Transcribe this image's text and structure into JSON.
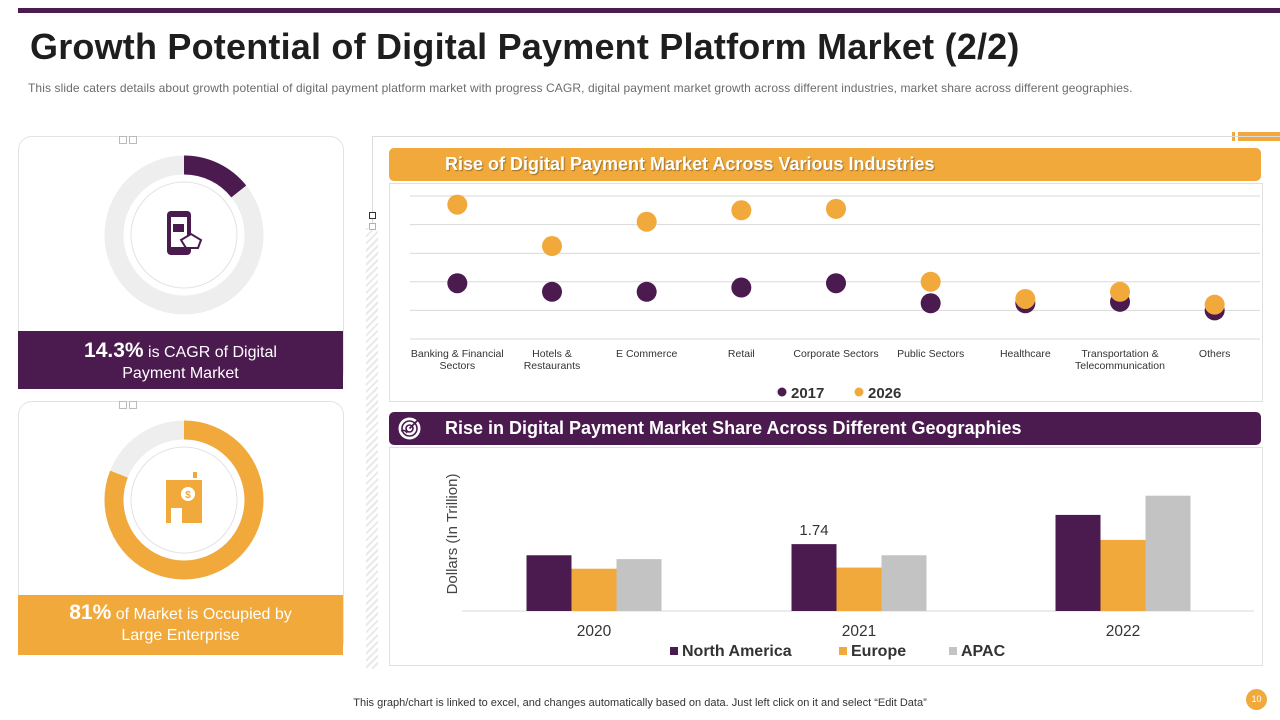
{
  "slide": {
    "title": "Growth Potential of Digital Payment Platform Market (2/2)",
    "subtitle": "This slide caters details about growth  potential of digital payment platform  market with progress  CAGR, digital payment market growth  across different  industries,  market share  across different  geographies.",
    "footer": "This graph/chart is linked to excel,  and changes automatically based on data. Just left click on it and select “Edit Data”",
    "page_number": "10"
  },
  "colors": {
    "purple": "#4b1a4f",
    "orange": "#f0a93a",
    "gray": "#c3c3c3"
  },
  "stats": [
    {
      "value": "14.3%",
      "text_line1": " is CAGR of Digital",
      "text_line2": "Payment Market",
      "icon": "mobile-payment-icon",
      "progress_percent": 14.3
    },
    {
      "value": "81%",
      "text_line1": " of Market is Occupied by",
      "text_line2": "Large Enterprise",
      "icon": "building-dollar-icon",
      "progress_percent": 81
    }
  ],
  "sections": {
    "industries_title": "Rise of Digital Payment Market Across Various Industries",
    "geographies_title": "Rise in Digital Payment Market Share Across Different Geographies",
    "geographies_icon": "globe-target-icon"
  },
  "chart_data": [
    {
      "type": "scatter",
      "title": "Rise of Digital Payment Market Across Various Industries",
      "categories": [
        "Banking & Financial|Sectors",
        "Hotels &|Restaurants",
        "E Commerce",
        "Retail",
        "Corporate Sectors",
        "Public Sectors",
        "Healthcare",
        "Transportation &|Telecommunication",
        "Others"
      ],
      "series": [
        {
          "name": "2017",
          "values": [
            3.9,
            3.3,
            3.3,
            3.6,
            3.9,
            2.5,
            2.5,
            2.6,
            2.0
          ]
        },
        {
          "name": "2026",
          "values": [
            9.4,
            6.5,
            8.2,
            9.0,
            9.1,
            4.0,
            2.8,
            3.3,
            2.4
          ]
        },
        {
          "name": "",
          "values": []
        }
      ],
      "legend": [
        "2017",
        "2026"
      ],
      "ylim": [
        0,
        10
      ],
      "grid": true,
      "legend_position": "bottom"
    },
    {
      "type": "bar",
      "title": "Rise in Digital Payment Market Share Across Different Geographies",
      "categories": [
        "2020",
        "2021",
        "2022"
      ],
      "series": [
        {
          "name": "North America",
          "values": [
            1.45,
            1.74,
            2.5
          ]
        },
        {
          "name": "Europe",
          "values": [
            1.1,
            1.13,
            1.85
          ]
        },
        {
          "name": "APAC",
          "values": [
            1.35,
            1.45,
            3.0
          ]
        }
      ],
      "data_labels": [
        {
          "series": "North America",
          "category": "2021",
          "text": "1.74"
        }
      ],
      "ylabel": "Dollars (In Trillion)",
      "ylim": [
        0,
        3.2
      ],
      "legend_position": "bottom"
    }
  ]
}
